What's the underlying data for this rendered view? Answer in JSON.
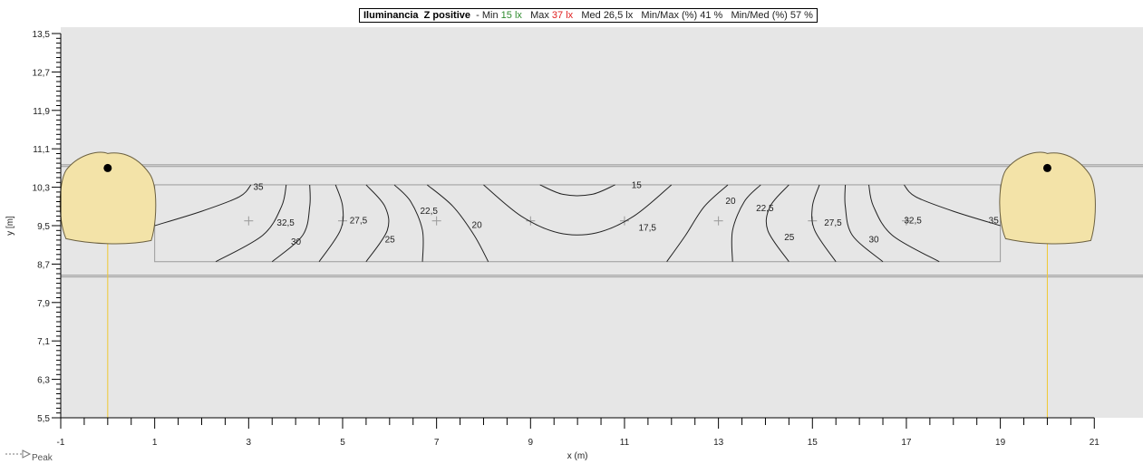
{
  "title": {
    "name": "Iluminancia",
    "surface": "Z positive",
    "sep": "-",
    "min_label": "Min",
    "min_value": "15 lx",
    "max_label": "Max",
    "max_value": "37 lx",
    "med_label": "Med",
    "med_value": "26,5 lx",
    "minmax_label": "Min/Max (%)",
    "minmax_value": "41 %",
    "minmed_label": "Min/Med (%)",
    "minmed_value": "57 %"
  },
  "colors": {
    "min": "#2e8b2e",
    "max": "#e02020",
    "background": "#e6e6e6",
    "light_blob": "#f3e3a8",
    "light_line": "#f0c830"
  },
  "legend": {
    "arrow_label": "Peak"
  },
  "chart_data": {
    "type": "contour",
    "xlabel": "x (m)",
    "ylabel": "y [m]",
    "xlim": [
      -1,
      21
    ],
    "ylim": [
      5.5,
      13.5
    ],
    "x_ticks": [
      "-1",
      "1",
      "3",
      "5",
      "7",
      "9",
      "11",
      "13",
      "15",
      "17",
      "19",
      "21"
    ],
    "y_ticks": [
      "5,5",
      "6,3",
      "7,1",
      "7,9",
      "8,7",
      "9,5",
      "10,3",
      "11,1",
      "11,9",
      "12,7",
      "13,5"
    ],
    "calc_area": {
      "x": [
        1,
        19
      ],
      "y": [
        8.75,
        10.35
      ]
    },
    "road_edges_y": [
      8.45,
      10.75
    ],
    "luminaires": [
      {
        "x": 0,
        "y": 10.7
      },
      {
        "x": 20,
        "y": 10.7
      }
    ],
    "grid_points": [
      {
        "x": 3,
        "y": 9.6
      },
      {
        "x": 5,
        "y": 9.6
      },
      {
        "x": 7,
        "y": 9.6
      },
      {
        "x": 9,
        "y": 9.6
      },
      {
        "x": 11,
        "y": 9.6
      },
      {
        "x": 13,
        "y": 9.6
      },
      {
        "x": 15,
        "y": 9.6
      },
      {
        "x": 17,
        "y": 9.6
      }
    ],
    "contours": [
      {
        "label": "35",
        "label_x": 3.1,
        "label_y": 10.25,
        "points": [
          [
            1,
            9.5
          ],
          [
            2,
            9.8
          ],
          [
            2.8,
            10.1
          ],
          [
            3.05,
            10.35
          ]
        ]
      },
      {
        "label": "32,5",
        "label_x": 3.6,
        "label_y": 9.5,
        "points": [
          [
            2.3,
            8.75
          ],
          [
            3.3,
            9.3
          ],
          [
            3.7,
            9.9
          ],
          [
            3.8,
            10.35
          ]
        ]
      },
      {
        "label": "30",
        "label_x": 3.9,
        "label_y": 9.1,
        "points": [
          [
            3.5,
            8.75
          ],
          [
            4.15,
            9.3
          ],
          [
            4.3,
            9.9
          ],
          [
            4.3,
            10.35
          ]
        ]
      },
      {
        "label": "27,5",
        "label_x": 5.15,
        "label_y": 9.55,
        "points": [
          [
            4.5,
            8.75
          ],
          [
            4.95,
            9.4
          ],
          [
            5,
            9.9
          ],
          [
            4.85,
            10.35
          ]
        ]
      },
      {
        "label": "25",
        "label_x": 5.9,
        "label_y": 9.15,
        "points": [
          [
            5.5,
            8.75
          ],
          [
            5.95,
            9.4
          ],
          [
            5.9,
            9.9
          ],
          [
            5.5,
            10.35
          ]
        ]
      },
      {
        "label": "22,5",
        "label_x": 6.65,
        "label_y": 9.75,
        "points": [
          [
            6.7,
            8.75
          ],
          [
            6.7,
            9.4
          ],
          [
            6.45,
            10
          ],
          [
            6.1,
            10.35
          ]
        ]
      },
      {
        "label": "20",
        "label_x": 7.75,
        "label_y": 9.45,
        "points": [
          [
            8.1,
            8.75
          ],
          [
            7.8,
            9.3
          ],
          [
            7.35,
            9.9
          ],
          [
            6.8,
            10.35
          ]
        ]
      },
      {
        "label": "17,5",
        "label_x": 11.3,
        "label_y": 9.4,
        "points": [
          [
            8,
            10.35
          ],
          [
            8.8,
            9.7
          ],
          [
            9.6,
            9.35
          ],
          [
            10.4,
            9.35
          ],
          [
            11.2,
            9.7
          ],
          [
            12,
            10.35
          ]
        ]
      },
      {
        "label": "15",
        "label_x": 11.15,
        "label_y": 10.28,
        "points": [
          [
            9.2,
            10.35
          ],
          [
            9.7,
            10.15
          ],
          [
            10.3,
            10.15
          ],
          [
            10.8,
            10.35
          ]
        ]
      },
      {
        "label": "20",
        "label_x": 13.15,
        "label_y": 9.95,
        "points": [
          [
            11.9,
            8.75
          ],
          [
            12.3,
            9.3
          ],
          [
            12.7,
            9.9
          ],
          [
            13.2,
            10.35
          ]
        ]
      },
      {
        "label": "22,5",
        "label_x": 13.8,
        "label_y": 9.8,
        "points": [
          [
            13.3,
            8.75
          ],
          [
            13.3,
            9.4
          ],
          [
            13.55,
            10
          ],
          [
            13.9,
            10.35
          ]
        ]
      },
      {
        "label": "25",
        "label_x": 14.4,
        "label_y": 9.2,
        "points": [
          [
            14.5,
            8.75
          ],
          [
            14.05,
            9.4
          ],
          [
            14.1,
            9.9
          ],
          [
            14.5,
            10.35
          ]
        ]
      },
      {
        "label": "27,5",
        "label_x": 15.25,
        "label_y": 9.5,
        "points": [
          [
            15.5,
            8.75
          ],
          [
            15.05,
            9.4
          ],
          [
            15,
            9.9
          ],
          [
            15.15,
            10.35
          ]
        ]
      },
      {
        "label": "30",
        "label_x": 16.2,
        "label_y": 9.15,
        "points": [
          [
            16.5,
            8.75
          ],
          [
            15.85,
            9.3
          ],
          [
            15.7,
            9.9
          ],
          [
            15.7,
            10.35
          ]
        ]
      },
      {
        "label": "32,5",
        "label_x": 16.95,
        "label_y": 9.55,
        "points": [
          [
            17.7,
            8.75
          ],
          [
            16.7,
            9.3
          ],
          [
            16.3,
            9.9
          ],
          [
            16.2,
            10.35
          ]
        ]
      },
      {
        "label": "35",
        "label_x": 18.75,
        "label_y": 9.55,
        "points": [
          [
            19,
            9.5
          ],
          [
            18,
            9.8
          ],
          [
            17.2,
            10.1
          ],
          [
            16.95,
            10.35
          ]
        ]
      }
    ]
  }
}
